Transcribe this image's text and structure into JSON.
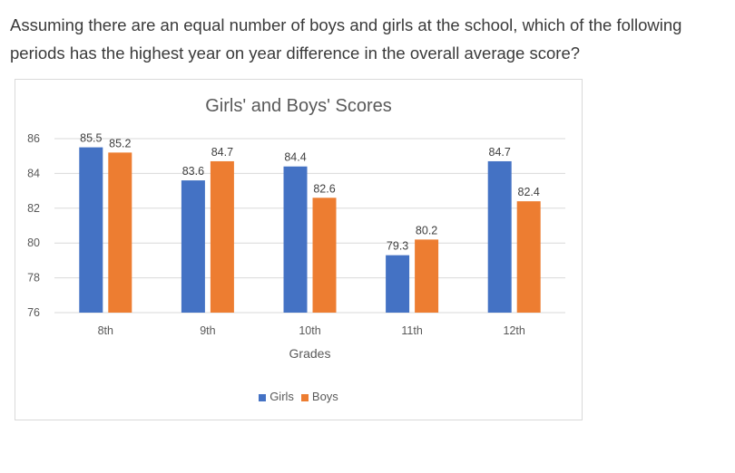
{
  "question": "Assuming there are an equal number of boys and girls at the school, which of the following periods has the highest year on year difference in the overall average score?",
  "chart_data": {
    "type": "bar",
    "title": "Girls' and Boys' Scores",
    "xlabel": "Grades",
    "ylabel": "",
    "categories": [
      "8th",
      "9th",
      "10th",
      "11th",
      "12th"
    ],
    "series": [
      {
        "name": "Girls",
        "color": "#4472C4",
        "values": [
          85.5,
          83.6,
          84.4,
          79.3,
          84.7
        ]
      },
      {
        "name": "Boys",
        "color": "#ED7D31",
        "values": [
          85.2,
          84.7,
          82.6,
          80.2,
          82.4
        ]
      }
    ],
    "value_labels": [
      [
        "85.5",
        "83.6",
        "84.4",
        "79.3",
        "84.7"
      ],
      [
        "85.2",
        "84.7",
        "82.6",
        "80.2",
        "82.4"
      ]
    ],
    "yticks": [
      76,
      78,
      80,
      82,
      84,
      86
    ],
    "ytick_labels": [
      "76",
      "78",
      "80",
      "82",
      "84",
      "86"
    ],
    "ylim": [
      76,
      86
    ],
    "grid": true,
    "legend_position": "bottom"
  }
}
